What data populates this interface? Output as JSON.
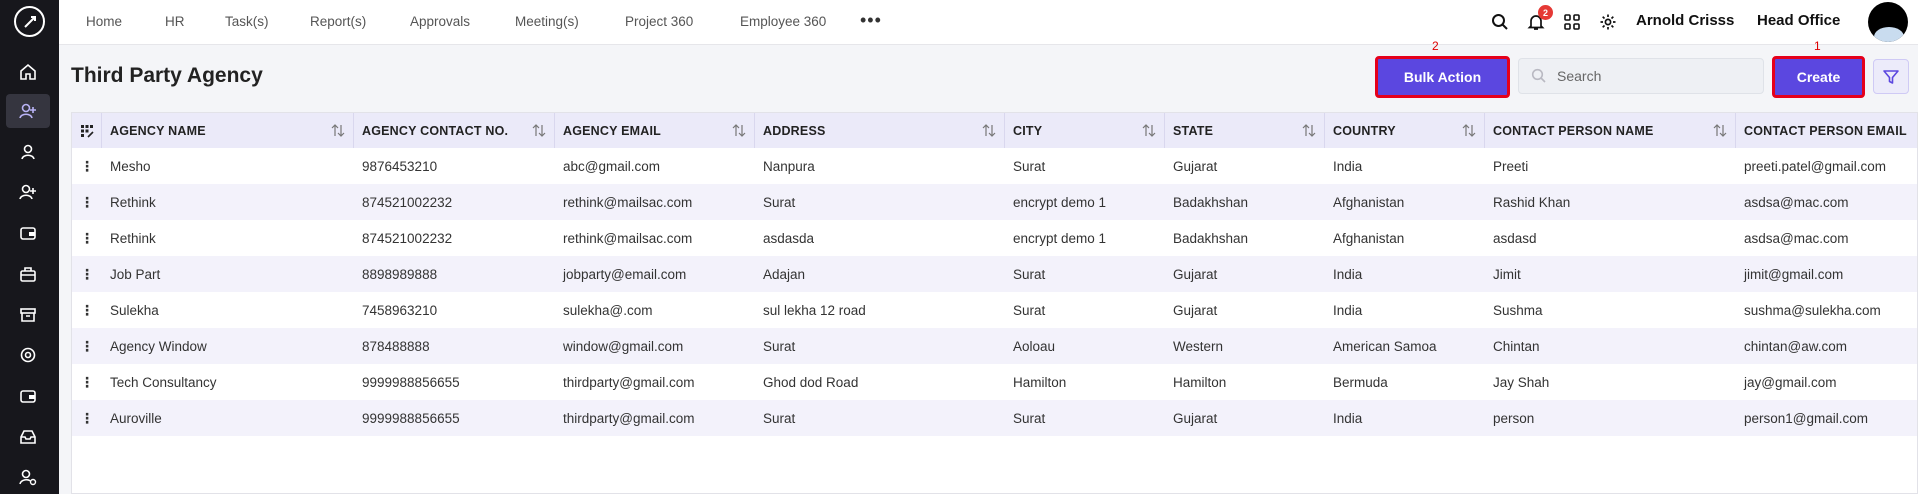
{
  "nav": {
    "items": [
      "Home",
      "HR",
      "Task(s)",
      "Report(s)",
      "Approvals",
      "Meeting(s)",
      "Project 360",
      "Employee 360"
    ],
    "more_icon": "more-horizontal-icon"
  },
  "header": {
    "notification_count": "2",
    "user_name": "Arnold Crisss",
    "office": "Head Office"
  },
  "page": {
    "title": "Third Party Agency",
    "bulk_action_label": "Bulk Action",
    "bulk_action_marker": "2",
    "create_label": "Create",
    "create_marker": "1",
    "search_placeholder": "Search"
  },
  "colors": {
    "primary": "#5b47e0",
    "annotation": "#e5001b",
    "sidebar": "#17171c"
  },
  "table": {
    "columns": [
      "AGENCY NAME",
      "AGENCY CONTACT NO.",
      "AGENCY EMAIL",
      "ADDRESS",
      "CITY",
      "STATE",
      "COUNTRY",
      "CONTACT PERSON NAME",
      "CONTACT PERSON EMAIL"
    ],
    "rows": [
      [
        "Mesho",
        "9876453210",
        "abc@gmail.com",
        "Nanpura",
        "Surat",
        "Gujarat",
        "India",
        "Preeti",
        "preeti.patel@gmail.com"
      ],
      [
        "Rethink",
        "874521002232",
        "rethink@mailsac.com",
        "Surat",
        "encrypt demo 1",
        "Badakhshan",
        "Afghanistan",
        "Rashid Khan",
        "asdsa@mac.com"
      ],
      [
        "Rethink",
        "874521002232",
        "rethink@mailsac.com",
        "asdasda",
        "encrypt demo 1",
        "Badakhshan",
        "Afghanistan",
        "asdasd",
        "asdsa@mac.com"
      ],
      [
        "Job Part",
        "8898989888",
        "jobparty@email.com",
        "Adajan",
        "Surat",
        "Gujarat",
        "India",
        "Jimit",
        "jimit@gmail.com"
      ],
      [
        "Sulekha",
        "7458963210",
        "sulekha@.com",
        "sul lekha 12 road",
        "Surat",
        "Gujarat",
        "India",
        "Sushma",
        "sushma@sulekha.com"
      ],
      [
        "Agency Window",
        "878488888",
        "window@gmail.com",
        "Surat",
        "Aoloau",
        "Western",
        "American Samoa",
        "Chintan",
        "chintan@aw.com"
      ],
      [
        "Tech Consultancy",
        "9999988856655",
        "thirdparty@gmail.com",
        "Ghod dod Road",
        "Hamilton",
        "Hamilton",
        "Bermuda",
        "Jay Shah",
        "jay@gmail.com"
      ],
      [
        "Auroville",
        "9999988856655",
        "thirdparty@gmail.com",
        "Surat",
        "Surat",
        "Gujarat",
        "India",
        "person",
        "person1@gmail.com"
      ]
    ]
  }
}
